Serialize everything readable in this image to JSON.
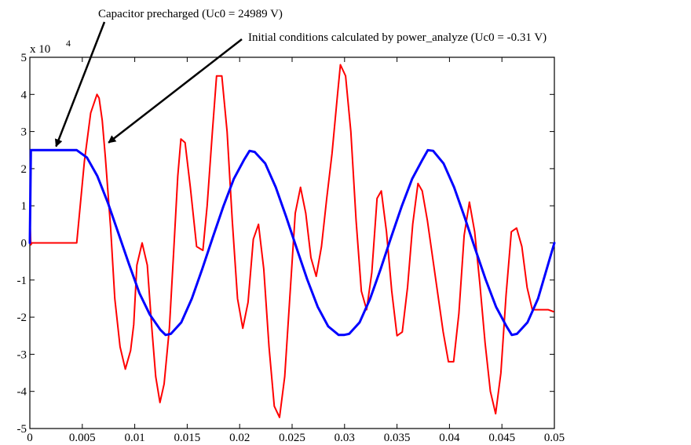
{
  "chart_data": {
    "type": "line",
    "xlim": [
      0,
      0.05
    ],
    "ylim": [
      -5,
      5
    ],
    "y_scale_label": "x 10",
    "y_scale_exponent": "4",
    "x_ticks": [
      0,
      0.005,
      0.01,
      0.015,
      0.02,
      0.025,
      0.03,
      0.035,
      0.04,
      0.045,
      0.05
    ],
    "x_tick_labels": [
      "0",
      "0.005",
      "0.01",
      "0.015",
      "0.02",
      "0.025",
      "0.03",
      "0.035",
      "0.04",
      "0.045",
      "0.05"
    ],
    "y_ticks": [
      -5,
      -4,
      -3,
      -2,
      -1,
      0,
      1,
      2,
      3,
      4,
      5
    ],
    "y_tick_labels": [
      "-5",
      "-4",
      "-3",
      "-2",
      "-1",
      "0",
      "1",
      "2",
      "3",
      "4",
      "5"
    ],
    "grid": false,
    "series": [
      {
        "color": "#ff0000",
        "x": [
          0,
          0.0001,
          0.0002,
          0.00447,
          0.0052,
          0.0058,
          0.0064,
          0.0066,
          0.0069,
          0.0072,
          0.0077,
          0.0081,
          0.0086,
          0.0091,
          0.0096,
          0.0099,
          0.0102,
          0.0107,
          0.0112,
          0.0116,
          0.012,
          0.0124,
          0.0128,
          0.0133,
          0.0137,
          0.0141,
          0.0144,
          0.0148,
          0.0153,
          0.0159,
          0.0165,
          0.0169,
          0.0174,
          0.0178,
          0.0183,
          0.0188,
          0.0193,
          0.0198,
          0.0203,
          0.0208,
          0.0213,
          0.0218,
          0.0223,
          0.0228,
          0.0233,
          0.0238,
          0.0243,
          0.0248,
          0.0253,
          0.0258,
          0.0263,
          0.0268,
          0.0273,
          0.0278,
          0.0283,
          0.0288,
          0.0293,
          0.0296,
          0.0301,
          0.0306,
          0.0311,
          0.0316,
          0.0321,
          0.0326,
          0.0331,
          0.0335,
          0.034,
          0.0345,
          0.035,
          0.0355,
          0.036,
          0.0365,
          0.037,
          0.0374,
          0.0379,
          0.0384,
          0.0389,
          0.0394,
          0.0399,
          0.0404,
          0.0409,
          0.0414,
          0.0419,
          0.0424,
          0.0429,
          0.0434,
          0.0439,
          0.0444,
          0.0449,
          0.0454,
          0.0459,
          0.0464,
          0.0469,
          0.0474,
          0.0479,
          0.0484,
          0.0489,
          0.0494,
          0.0499
        ],
        "y": [
          0.7,
          -0.05,
          0,
          0,
          2.2,
          3.5,
          4.0,
          3.9,
          3.3,
          2.3,
          0.4,
          -1.5,
          -2.8,
          -3.4,
          -2.9,
          -2.2,
          -0.6,
          0.0,
          -0.6,
          -2.2,
          -3.6,
          -4.3,
          -3.8,
          -2.3,
          -0.3,
          1.8,
          2.8,
          2.7,
          1.5,
          -0.1,
          -0.2,
          1.0,
          3.0,
          4.5,
          4.5,
          3.0,
          0.6,
          -1.5,
          -2.3,
          -1.6,
          0.1,
          0.5,
          -0.7,
          -2.8,
          -4.4,
          -4.7,
          -3.6,
          -1.4,
          0.8,
          1.5,
          0.8,
          -0.4,
          -0.9,
          -0.1,
          1.2,
          2.4,
          3.9,
          4.8,
          4.5,
          3.0,
          0.6,
          -1.3,
          -1.8,
          -0.8,
          1.2,
          1.4,
          0.3,
          -1.3,
          -2.5,
          -2.4,
          -1.2,
          0.5,
          1.6,
          1.4,
          0.6,
          -0.4,
          -1.4,
          -2.4,
          -3.2,
          -3.2,
          -1.9,
          0.2,
          1.1,
          0.3,
          -1.1,
          -2.7,
          -4.0,
          -4.6,
          -3.5,
          -1.4,
          0.3,
          0.4,
          -0.1,
          -1.2,
          -1.8,
          -1.8,
          -1.8,
          -1.8,
          -1.85
        ]
      },
      {
        "color": "#0000ff",
        "x": [
          0,
          0.0001,
          0.0004,
          0.00447,
          0.00544,
          0.00644,
          0.00744,
          0.00844,
          0.00944,
          0.01044,
          0.01144,
          0.01244,
          0.01294,
          0.01344,
          0.01444,
          0.01544,
          0.01644,
          0.01744,
          0.01844,
          0.01944,
          0.02044,
          0.02094,
          0.02144,
          0.02244,
          0.02344,
          0.02444,
          0.02544,
          0.02644,
          0.02744,
          0.02844,
          0.02944,
          0.02994,
          0.03044,
          0.03144,
          0.03244,
          0.03344,
          0.03444,
          0.03544,
          0.03644,
          0.03744,
          0.03794,
          0.03844,
          0.03944,
          0.04044,
          0.04144,
          0.04244,
          0.04344,
          0.04444,
          0.04544,
          0.04594,
          0.04644,
          0.04744,
          0.04844,
          0.05
        ],
        "y": [
          0,
          2.5,
          2.5,
          2.5,
          2.3,
          1.8,
          1.08,
          0.26,
          -0.56,
          -1.35,
          -1.93,
          -2.34,
          -2.48,
          -2.45,
          -2.14,
          -1.5,
          -0.7,
          0.15,
          0.98,
          1.72,
          2.25,
          2.48,
          2.45,
          2.14,
          1.5,
          0.7,
          -0.15,
          -0.98,
          -1.72,
          -2.25,
          -2.48,
          -2.48,
          -2.45,
          -2.14,
          -1.5,
          -0.7,
          0.15,
          0.98,
          1.72,
          2.25,
          2.5,
          2.48,
          2.14,
          1.5,
          0.7,
          -0.15,
          -0.98,
          -1.72,
          -2.25,
          -2.48,
          -2.45,
          -2.14,
          -1.5,
          0.0
        ]
      }
    ],
    "annotations": [
      {
        "text": "Capacitor precharged (Uc0 = 24989 V)",
        "target": [
          0.0025,
          2.6
        ]
      },
      {
        "text": "Initial conditions calculated by power_analyze (Uc0 = -0.31 V)",
        "target": [
          0.0075,
          2.7
        ]
      }
    ]
  }
}
